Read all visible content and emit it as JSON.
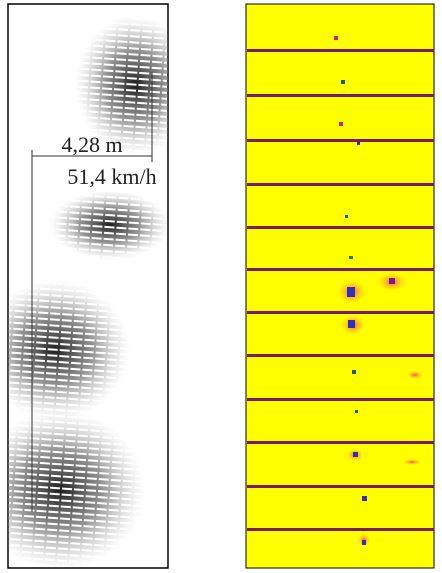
{
  "annotation": {
    "distance": "4,28 m",
    "speed": "51,4 km/h"
  }
}
